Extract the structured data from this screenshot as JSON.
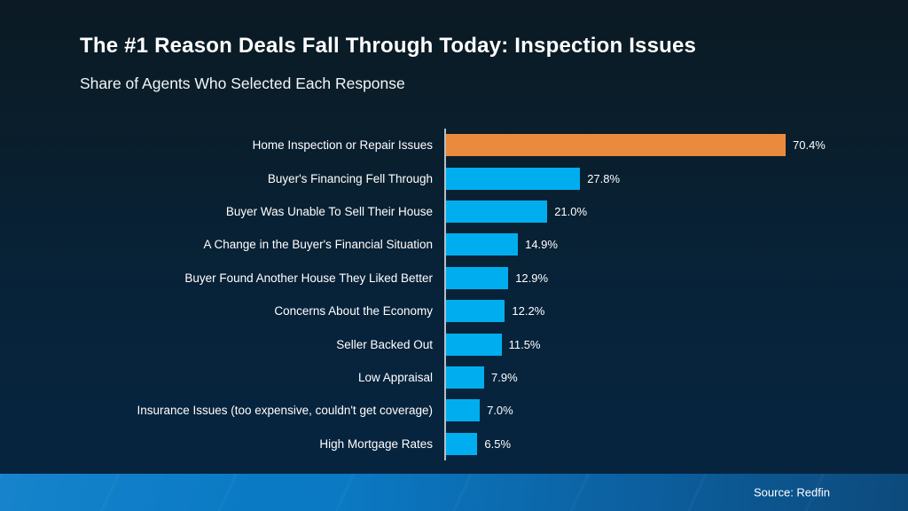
{
  "header": {
    "title": "The #1 Reason Deals Fall Through Today: Inspection Issues",
    "subtitle": "Share of Agents Who Selected Each Response"
  },
  "chart_data": {
    "type": "bar",
    "orientation": "horizontal",
    "title": "The #1 Reason Deals Fall Through Today: Inspection Issues",
    "subtitle": "Share of Agents Who Selected Each Response",
    "categories": [
      "Home Inspection or Repair Issues",
      "Buyer's Financing Fell Through",
      "Buyer Was Unable To Sell Their House",
      "A Change in the Buyer's Financial Situation",
      "Buyer Found Another House They Liked Better",
      "Concerns About the Economy",
      "Seller Backed Out",
      "Low Appraisal",
      "Insurance Issues (too expensive, couldn't get coverage)",
      "High Mortgage Rates"
    ],
    "values": [
      70.4,
      27.8,
      21.0,
      14.9,
      12.9,
      12.2,
      11.5,
      7.9,
      7.0,
      6.5
    ],
    "value_labels": [
      "70.4%",
      "27.8%",
      "21.0%",
      "14.9%",
      "12.9%",
      "12.2%",
      "11.5%",
      "7.9%",
      "7.0%",
      "6.5%"
    ],
    "highlight_index": 0,
    "highlight_color": "#E98A3C",
    "bar_color": "#00AEEF",
    "xlim": [
      0,
      78
    ],
    "grid": false,
    "legend": false,
    "xlabel": "",
    "ylabel": ""
  },
  "footer": {
    "source": "Source: Redfin"
  },
  "colors": {
    "background_top": "#0b1a23",
    "background_bottom": "#062540",
    "axis_line": "#b3bfc9",
    "text": "#ffffff",
    "band_left": "#0a7dc9",
    "band_right": "#0d4a7c"
  }
}
